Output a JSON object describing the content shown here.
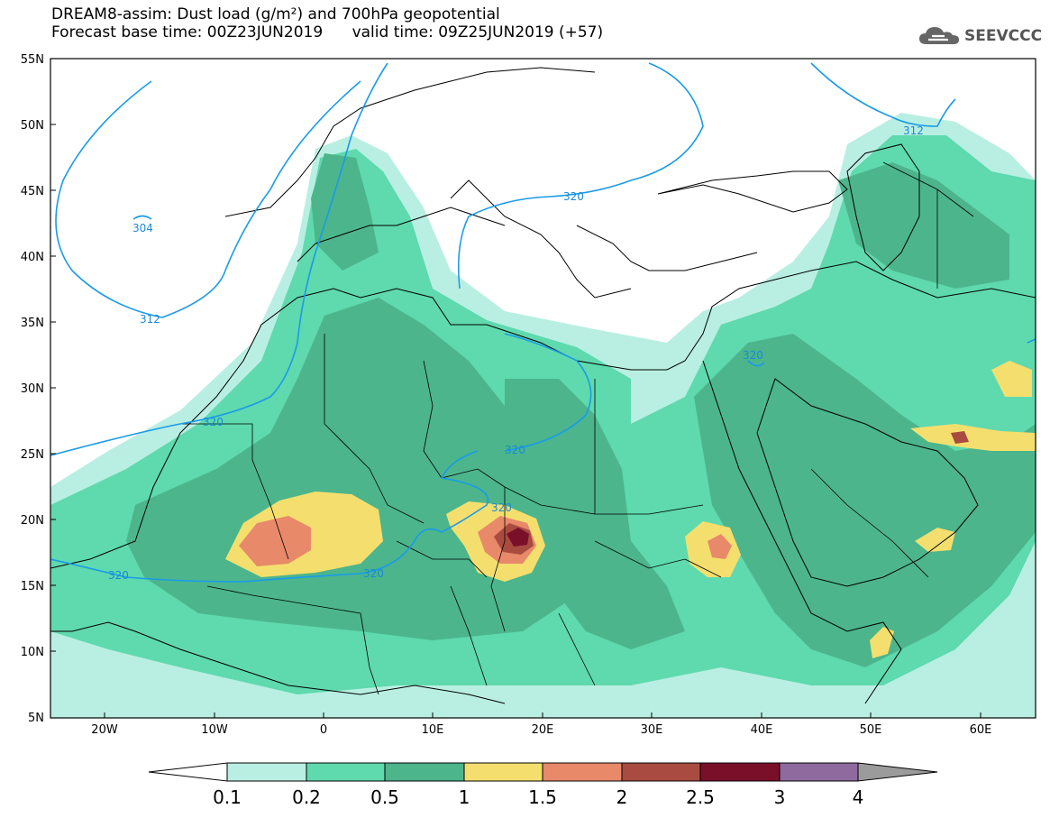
{
  "title": {
    "line1": "DREAM8-assim: Dust load (g/m²) and 700hPa geopotential",
    "line2": "Forecast base time: 00Z23JUN2019      valid time: 09Z25JUN2019 (+57)"
  },
  "logo": {
    "text": "SEEVCCC",
    "icon": "cloud-icon"
  },
  "map": {
    "lon_range": [
      -25,
      65
    ],
    "lat_range": [
      5,
      55
    ],
    "lat_ticks": [
      "55N",
      "50N",
      "45N",
      "40N",
      "35N",
      "30N",
      "25N",
      "20N",
      "15N",
      "10N",
      "5N"
    ],
    "lon_ticks": [
      "20W",
      "10W",
      "0",
      "10E",
      "20E",
      "30E",
      "40E",
      "50E",
      "60E"
    ],
    "contour_labels": [
      {
        "text": "304"
      },
      {
        "text": "312"
      },
      {
        "text": "312"
      },
      {
        "text": "320"
      },
      {
        "text": "320"
      },
      {
        "text": "320"
      },
      {
        "text": "320"
      },
      {
        "text": "320"
      },
      {
        "text": "320"
      },
      {
        "text": "320"
      }
    ]
  },
  "colorbar": {
    "labels": [
      "0.1",
      "0.2",
      "0.5",
      "1",
      "1.5",
      "2",
      "2.5",
      "3",
      "4"
    ],
    "colors": [
      "#b9efe2",
      "#5fd9ae",
      "#4cb58c",
      "#f4df6e",
      "#e8896a",
      "#a94b40",
      "#7a0f2a",
      "#8e6a9e",
      "#9b9b9b"
    ]
  }
}
